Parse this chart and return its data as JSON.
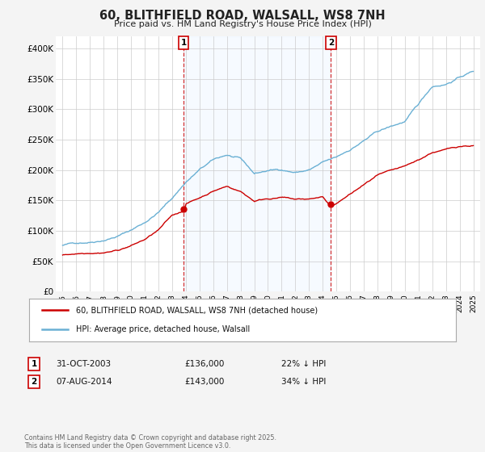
{
  "title": "60, BLITHFIELD ROAD, WALSALL, WS8 7NH",
  "subtitle": "Price paid vs. HM Land Registry's House Price Index (HPI)",
  "ytick_labels": [
    "£0",
    "£50K",
    "£100K",
    "£150K",
    "£200K",
    "£250K",
    "£300K",
    "£350K",
    "£400K"
  ],
  "yticks": [
    0,
    50000,
    100000,
    150000,
    200000,
    250000,
    300000,
    350000,
    400000
  ],
  "ylim": [
    0,
    420000
  ],
  "hpi_color": "#6ab0d4",
  "property_color": "#cc0000",
  "shade_color": "#ddeeff",
  "sale1_year": 2003.83,
  "sale1_price": 136000,
  "sale2_year": 2014.6,
  "sale2_price": 143000,
  "sale1_date": "31-OCT-2003",
  "sale1_amount": "£136,000",
  "sale1_pct": "22% ↓ HPI",
  "sale2_date": "07-AUG-2014",
  "sale2_amount": "£143,000",
  "sale2_pct": "34% ↓ HPI",
  "legend_property": "60, BLITHFIELD ROAD, WALSALL, WS8 7NH (detached house)",
  "legend_hpi": "HPI: Average price, detached house, Walsall",
  "footnote": "Contains HM Land Registry data © Crown copyright and database right 2025.\nThis data is licensed under the Open Government Licence v3.0.",
  "background_color": "#f4f4f4",
  "plot_bg_color": "#ffffff",
  "grid_color": "#cccccc",
  "hpi_key_t": [
    1995,
    1996,
    1997,
    1998,
    1999,
    2000,
    2001,
    2002,
    2003,
    2004,
    2005,
    2006,
    2007,
    2008,
    2009,
    2010,
    2011,
    2012,
    2013,
    2014,
    2015,
    2016,
    2017,
    2018,
    2019,
    2020,
    2021,
    2022,
    2023,
    2024,
    2025
  ],
  "hpi_key_v": [
    76000,
    80000,
    83000,
    88000,
    95000,
    105000,
    118000,
    135000,
    158000,
    185000,
    205000,
    220000,
    228000,
    220000,
    195000,
    200000,
    202000,
    198000,
    202000,
    213000,
    220000,
    233000,
    248000,
    262000,
    270000,
    278000,
    305000,
    335000,
    340000,
    352000,
    362000
  ],
  "prop_key_t": [
    1995,
    1996,
    1997,
    1998,
    1999,
    2000,
    2001,
    2002,
    2003,
    2003.83,
    2004,
    2005,
    2006,
    2007,
    2008,
    2009,
    2010,
    2011,
    2012,
    2013,
    2014,
    2014.6,
    2015,
    2016,
    2017,
    2018,
    2019,
    2020,
    2021,
    2022,
    2023,
    2024,
    2025
  ],
  "prop_key_v": [
    60000,
    63000,
    66000,
    68000,
    72000,
    80000,
    90000,
    105000,
    128000,
    136000,
    148000,
    158000,
    170000,
    178000,
    170000,
    155000,
    160000,
    162000,
    158000,
    158000,
    162000,
    143000,
    150000,
    165000,
    180000,
    195000,
    200000,
    205000,
    215000,
    228000,
    232000,
    238000,
    240000
  ]
}
